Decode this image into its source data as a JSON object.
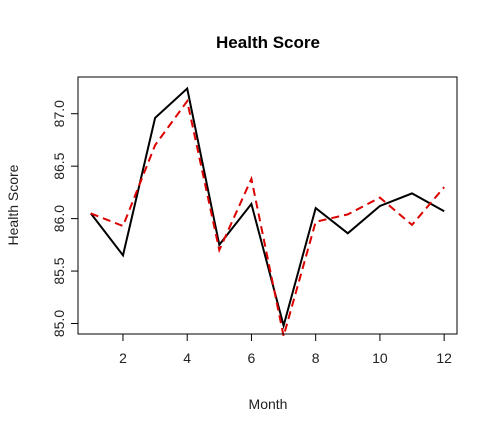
{
  "chart_data": {
    "type": "line",
    "title": "Health Score",
    "xlabel": "Month",
    "ylabel": "Health Score",
    "xlim": [
      0.6,
      12.4
    ],
    "ylim": [
      84.9,
      87.35
    ],
    "xticks": [
      2,
      4,
      6,
      8,
      10,
      12
    ],
    "yticks": [
      85.0,
      85.5,
      86.0,
      86.5,
      87.0
    ],
    "ytick_labels": [
      "85.0",
      "85.5",
      "86.0",
      "86.5",
      "87.0"
    ],
    "grid": false,
    "legend": "none",
    "x": [
      1,
      2,
      3,
      4,
      5,
      6,
      7,
      8,
      9,
      10,
      11,
      12
    ],
    "series": [
      {
        "values": [
          86.05,
          85.65,
          86.96,
          87.24,
          85.75,
          86.14,
          84.98,
          86.1,
          85.86,
          86.12,
          86.24,
          86.07
        ],
        "color": "#000000",
        "style": "solid"
      },
      {
        "values": [
          86.05,
          85.93,
          86.7,
          87.12,
          85.7,
          86.38,
          84.88,
          85.97,
          86.04,
          86.2,
          85.94,
          86.3
        ],
        "color": "#dd0000",
        "style": "dashed"
      }
    ]
  }
}
